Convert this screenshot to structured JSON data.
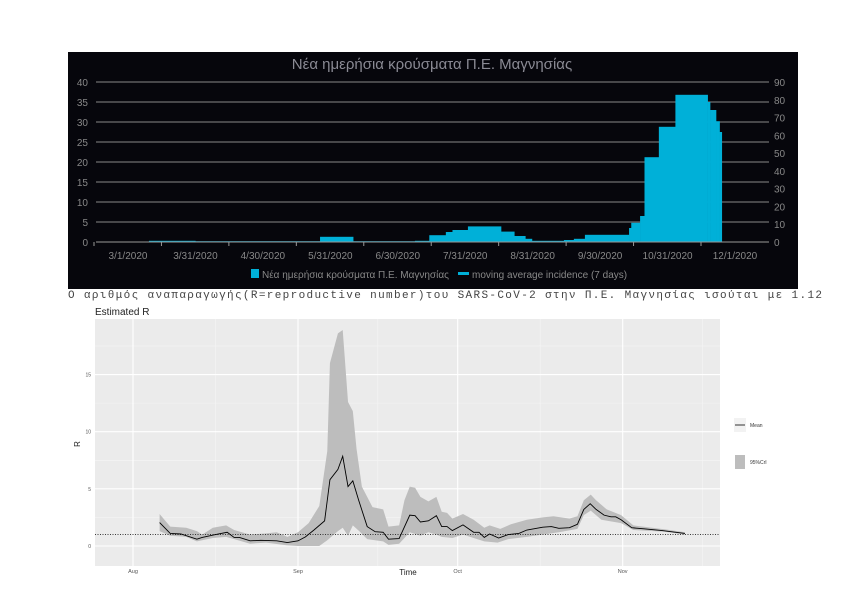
{
  "chart_data": [
    {
      "type": "bar",
      "title": "Νέα ημερήσια κρούσματα Π.Ε. Μαγνησίας",
      "x_ticks": [
        "3/1/2020",
        "3/31/2020",
        "4/30/2020",
        "5/31/2020",
        "6/30/2020",
        "7/31/2020",
        "8/31/2020",
        "9/30/2020",
        "10/31/2020",
        "12/1/2020"
      ],
      "y_left_ticks": [
        0,
        5,
        10,
        15,
        20,
        25,
        30,
        35,
        40
      ],
      "y_left_lim": [
        0,
        40
      ],
      "y_right_ticks": [
        0,
        10,
        20,
        30,
        40,
        50,
        60,
        70,
        80,
        90
      ],
      "y_right_lim": [
        0,
        90
      ],
      "legend": [
        "Νέα ημερήσια κρούσματα Π.Ε. Μαγνησίας",
        "moving average incidence (7 days)"
      ],
      "legend_position": "bottom",
      "bar_color": "#00b0d8",
      "x_unit": "days since 3/1/2020",
      "segments": [
        [
          9.5,
          30.5,
          0.3
        ],
        [
          30.5,
          87,
          0.2
        ],
        [
          87,
          102,
          1.3
        ],
        [
          102,
          130,
          0.2
        ],
        [
          130,
          136.5,
          0.3
        ],
        [
          136.5,
          144,
          1.7
        ],
        [
          144,
          147,
          2.5
        ],
        [
          147,
          154,
          3.0
        ],
        [
          154,
          169,
          3.9
        ],
        [
          169,
          175,
          2.6
        ],
        [
          175,
          180,
          1.5
        ],
        [
          180,
          183,
          0.8
        ],
        [
          183,
          197.5,
          0.3
        ],
        [
          197.5,
          202,
          0.5
        ],
        [
          202,
          207,
          0.8
        ],
        [
          207,
          227,
          1.8
        ],
        [
          227,
          228,
          3.5
        ],
        [
          228,
          232,
          4.8
        ],
        [
          232,
          234,
          6.5
        ],
        [
          234,
          240.5,
          21.2
        ],
        [
          240.5,
          248,
          28.8
        ],
        [
          248,
          262.6,
          36.8
        ],
        [
          262.6,
          263.7,
          35
        ],
        [
          263.7,
          266.4,
          33
        ],
        [
          266.4,
          268,
          30.2
        ],
        [
          268,
          269,
          27.5
        ]
      ]
    },
    {
      "type": "line",
      "title": "Estimated R",
      "xlabel": "Time",
      "ylabel": "R",
      "x_ticks": [
        "Aug",
        "Sep",
        "Oct",
        "Nov"
      ],
      "x_tick_days": [
        0,
        31,
        61,
        92
      ],
      "x_unit": "days since Aug 1",
      "y_ticks": [
        0,
        5,
        10,
        15
      ],
      "ylim": [
        -0.8,
        19.5
      ],
      "xlim": [
        -7,
        110
      ],
      "legend": [
        "Mean",
        "95%CrI"
      ],
      "legend_position": "right",
      "reference_line": 1,
      "mean": [
        [
          5,
          2.05
        ],
        [
          7,
          1.1
        ],
        [
          9,
          1.05
        ],
        [
          12,
          0.6
        ],
        [
          13,
          0.75
        ],
        [
          15.5,
          1.0
        ],
        [
          17.7,
          1.2
        ],
        [
          19,
          0.75
        ],
        [
          20,
          0.75
        ],
        [
          22,
          0.45
        ],
        [
          24,
          0.5
        ],
        [
          27,
          0.45
        ],
        [
          29,
          0.3
        ],
        [
          31,
          0.45
        ],
        [
          32.4,
          0.8
        ],
        [
          34,
          1.4
        ],
        [
          36,
          2.2
        ],
        [
          37,
          5.8
        ],
        [
          38.5,
          6.7
        ],
        [
          39.4,
          7.85
        ],
        [
          40.4,
          5.2
        ],
        [
          41.3,
          5.7
        ],
        [
          42.4,
          4.0
        ],
        [
          44,
          1.7
        ],
        [
          45.5,
          1.25
        ],
        [
          47,
          1.2
        ],
        [
          48,
          0.6
        ],
        [
          50,
          0.65
        ],
        [
          52,
          2.7
        ],
        [
          53,
          2.65
        ],
        [
          54,
          2.1
        ],
        [
          55.5,
          2.2
        ],
        [
          57,
          2.65
        ],
        [
          58,
          1.7
        ],
        [
          59,
          1.7
        ],
        [
          60,
          1.35
        ],
        [
          62,
          1.85
        ],
        [
          64,
          1.2
        ],
        [
          65,
          1.2
        ],
        [
          66,
          0.75
        ],
        [
          67,
          1.05
        ],
        [
          68.7,
          0.7
        ],
        [
          70.5,
          1.0
        ],
        [
          72.5,
          1.1
        ],
        [
          74,
          1.4
        ],
        [
          77,
          1.65
        ],
        [
          78.6,
          1.7
        ],
        [
          80,
          1.55
        ],
        [
          82,
          1.6
        ],
        [
          83.5,
          1.9
        ],
        [
          84.7,
          3.2
        ],
        [
          85.9,
          3.7
        ],
        [
          87,
          3.2
        ],
        [
          88.5,
          2.7
        ],
        [
          89.8,
          2.55
        ],
        [
          90.7,
          2.55
        ],
        [
          91.7,
          2.3
        ],
        [
          93.7,
          1.6
        ],
        [
          96,
          1.5
        ],
        [
          99.4,
          1.35
        ],
        [
          103.7,
          1.1
        ]
      ],
      "upper": [
        [
          5,
          2.8
        ],
        [
          7,
          1.7
        ],
        [
          10,
          1.6
        ],
        [
          12,
          1.3
        ],
        [
          13,
          1.0
        ],
        [
          15,
          1.6
        ],
        [
          17.5,
          1.8
        ],
        [
          19,
          1.4
        ],
        [
          22,
          1.0
        ],
        [
          25,
          1.1
        ],
        [
          27,
          1.2
        ],
        [
          29,
          0.8
        ],
        [
          31,
          1.2
        ],
        [
          33,
          2.0
        ],
        [
          35,
          3.5
        ],
        [
          36.5,
          8.3
        ],
        [
          37,
          16
        ],
        [
          38.5,
          18.6
        ],
        [
          39.4,
          18.9
        ],
        [
          40.4,
          12.6
        ],
        [
          41.3,
          11.8
        ],
        [
          42,
          8.5
        ],
        [
          43,
          5.2
        ],
        [
          45,
          3.4
        ],
        [
          47,
          3.2
        ],
        [
          48,
          1.7
        ],
        [
          50,
          1.8
        ],
        [
          51,
          4.0
        ],
        [
          52,
          5.2
        ],
        [
          53,
          5.1
        ],
        [
          54,
          4.3
        ],
        [
          55.5,
          3.9
        ],
        [
          57,
          4.3
        ],
        [
          58,
          3.0
        ],
        [
          59,
          2.9
        ],
        [
          60,
          2.4
        ],
        [
          62,
          2.8
        ],
        [
          64,
          2.3
        ],
        [
          66,
          1.6
        ],
        [
          67,
          1.8
        ],
        [
          69,
          1.5
        ],
        [
          71,
          1.9
        ],
        [
          74,
          2.3
        ],
        [
          77,
          2.5
        ],
        [
          79,
          2.6
        ],
        [
          82,
          2.4
        ],
        [
          83.5,
          2.6
        ],
        [
          84.7,
          4.0
        ],
        [
          86,
          4.5
        ],
        [
          87,
          4.0
        ],
        [
          89,
          3.2
        ],
        [
          91.7,
          2.7
        ],
        [
          94,
          1.8
        ],
        [
          100,
          1.45
        ],
        [
          103.7,
          1.2
        ]
      ],
      "lower": [
        [
          5,
          1.3
        ],
        [
          7,
          0.9
        ],
        [
          10,
          0.8
        ],
        [
          12,
          0.4
        ],
        [
          13,
          0.5
        ],
        [
          15,
          0.7
        ],
        [
          17.5,
          0.8
        ],
        [
          19,
          0.6
        ],
        [
          22,
          0.2
        ],
        [
          25,
          0.3
        ],
        [
          29,
          0.05
        ],
        [
          31,
          0
        ],
        [
          33,
          0
        ],
        [
          35,
          0
        ],
        [
          36.5,
          0.5
        ],
        [
          38.5,
          1.3
        ],
        [
          39.4,
          1.6
        ],
        [
          40.4,
          0.9
        ],
        [
          41.3,
          1.8
        ],
        [
          42.5,
          1.3
        ],
        [
          44,
          0.6
        ],
        [
          47,
          0.4
        ],
        [
          48,
          0.1
        ],
        [
          50,
          0.2
        ],
        [
          52,
          1.2
        ],
        [
          54,
          0.9
        ],
        [
          55.5,
          1.2
        ],
        [
          57,
          1.0
        ],
        [
          58,
          0.8
        ],
        [
          60,
          0.7
        ],
        [
          62,
          1.0
        ],
        [
          64,
          0.7
        ],
        [
          66,
          0.4
        ],
        [
          68.5,
          0.3
        ],
        [
          70.5,
          0.6
        ],
        [
          74,
          0.8
        ],
        [
          80,
          1.2
        ],
        [
          83.5,
          1.5
        ],
        [
          84.7,
          2.7
        ],
        [
          86,
          3.1
        ],
        [
          88,
          2.3
        ],
        [
          91.7,
          2.0
        ],
        [
          94,
          1.4
        ],
        [
          100,
          1.25
        ],
        [
          103.7,
          1.0
        ]
      ]
    }
  ],
  "caption": "Ο αριθμός αναπαραγωγής(R=reproductive number)του SARS-CoV-2 στην Π.Ε. Μαγνησίας ισούται με 1.12"
}
